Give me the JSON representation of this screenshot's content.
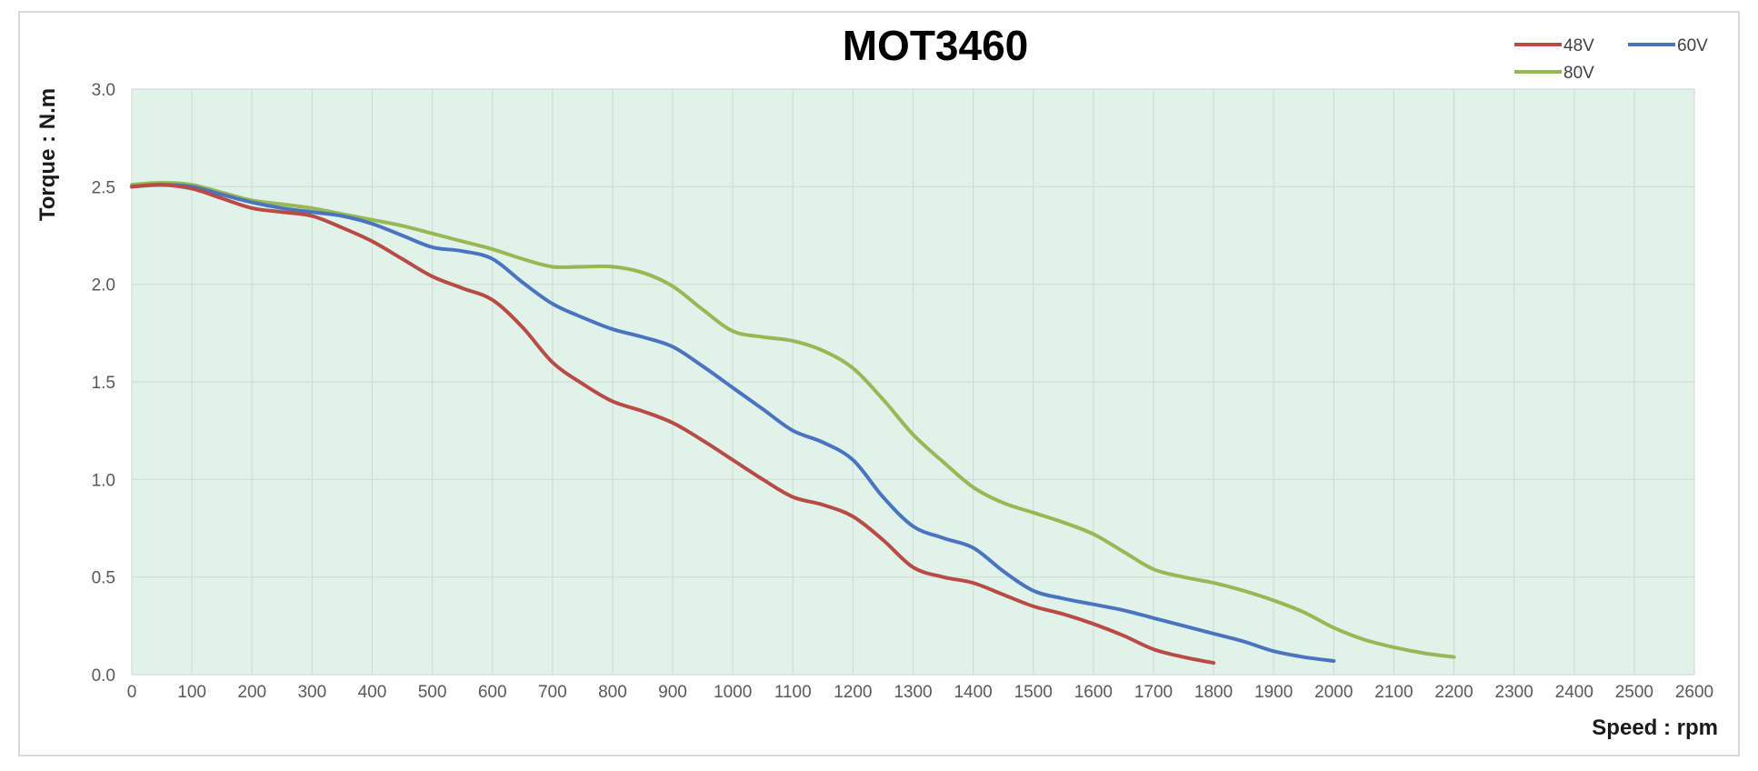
{
  "chart_data": {
    "type": "line",
    "title": "MOT3460",
    "xlabel": "Speed : rpm",
    "ylabel": "Torque : N.m",
    "xlim": [
      0,
      2600
    ],
    "ylim": [
      0,
      3.0
    ],
    "x_ticks": [
      0,
      100,
      200,
      300,
      400,
      500,
      600,
      700,
      800,
      900,
      1000,
      1100,
      1200,
      1300,
      1400,
      1500,
      1600,
      1700,
      1800,
      1900,
      2000,
      2100,
      2200,
      2300,
      2400,
      2500,
      2600
    ],
    "y_ticks": [
      0,
      0.5,
      1.0,
      1.5,
      2.0,
      2.5,
      3.0
    ],
    "y_tick_labels": [
      "0.0",
      "0.5",
      "1.0",
      "1.5",
      "2.0",
      "2.5",
      "3.0"
    ],
    "grid": true,
    "legend_position": "top-right",
    "plot_background": "#e0f2ea",
    "series": [
      {
        "name": "48V",
        "color": "#b84c45",
        "x": [
          0,
          50,
          100,
          150,
          200,
          250,
          300,
          350,
          400,
          450,
          500,
          550,
          600,
          650,
          700,
          750,
          800,
          850,
          900,
          950,
          1000,
          1050,
          1100,
          1150,
          1200,
          1250,
          1300,
          1350,
          1400,
          1450,
          1500,
          1550,
          1600,
          1650,
          1700,
          1750,
          1800
        ],
        "y": [
          2.5,
          2.51,
          2.49,
          2.44,
          2.39,
          2.37,
          2.35,
          2.29,
          2.22,
          2.13,
          2.04,
          1.98,
          1.92,
          1.78,
          1.6,
          1.49,
          1.4,
          1.35,
          1.29,
          1.2,
          1.1,
          1.0,
          0.91,
          0.87,
          0.81,
          0.69,
          0.55,
          0.5,
          0.47,
          0.41,
          0.35,
          0.31,
          0.26,
          0.2,
          0.13,
          0.09,
          0.06
        ]
      },
      {
        "name": "60V",
        "color": "#4a74bf",
        "x": [
          0,
          50,
          100,
          150,
          200,
          250,
          300,
          350,
          400,
          450,
          500,
          550,
          600,
          650,
          700,
          750,
          800,
          850,
          900,
          950,
          1000,
          1050,
          1100,
          1150,
          1200,
          1250,
          1300,
          1350,
          1400,
          1450,
          1500,
          1550,
          1600,
          1650,
          1700,
          1750,
          1800,
          1850,
          1900,
          1950,
          2000
        ],
        "y": [
          2.5,
          2.51,
          2.5,
          2.46,
          2.42,
          2.39,
          2.37,
          2.35,
          2.31,
          2.25,
          2.19,
          2.17,
          2.13,
          2.01,
          1.9,
          1.83,
          1.77,
          1.73,
          1.68,
          1.58,
          1.47,
          1.36,
          1.25,
          1.19,
          1.1,
          0.91,
          0.76,
          0.7,
          0.65,
          0.53,
          0.43,
          0.39,
          0.36,
          0.33,
          0.29,
          0.25,
          0.21,
          0.17,
          0.12,
          0.09,
          0.07
        ]
      },
      {
        "name": "80V",
        "color": "#96b954",
        "x": [
          0,
          50,
          100,
          150,
          200,
          250,
          300,
          350,
          400,
          450,
          500,
          550,
          600,
          650,
          700,
          750,
          800,
          850,
          900,
          950,
          1000,
          1050,
          1100,
          1150,
          1200,
          1250,
          1300,
          1350,
          1400,
          1450,
          1500,
          1550,
          1600,
          1650,
          1700,
          1750,
          1800,
          1850,
          1900,
          1950,
          2000,
          2050,
          2100,
          2150,
          2200
        ],
        "y": [
          2.51,
          2.52,
          2.51,
          2.47,
          2.43,
          2.41,
          2.39,
          2.36,
          2.33,
          2.3,
          2.26,
          2.22,
          2.18,
          2.13,
          2.09,
          2.09,
          2.09,
          2.06,
          1.99,
          1.87,
          1.76,
          1.73,
          1.71,
          1.66,
          1.57,
          1.41,
          1.23,
          1.09,
          0.96,
          0.88,
          0.83,
          0.78,
          0.72,
          0.63,
          0.54,
          0.5,
          0.47,
          0.43,
          0.38,
          0.32,
          0.24,
          0.18,
          0.14,
          0.11,
          0.09
        ]
      }
    ]
  }
}
